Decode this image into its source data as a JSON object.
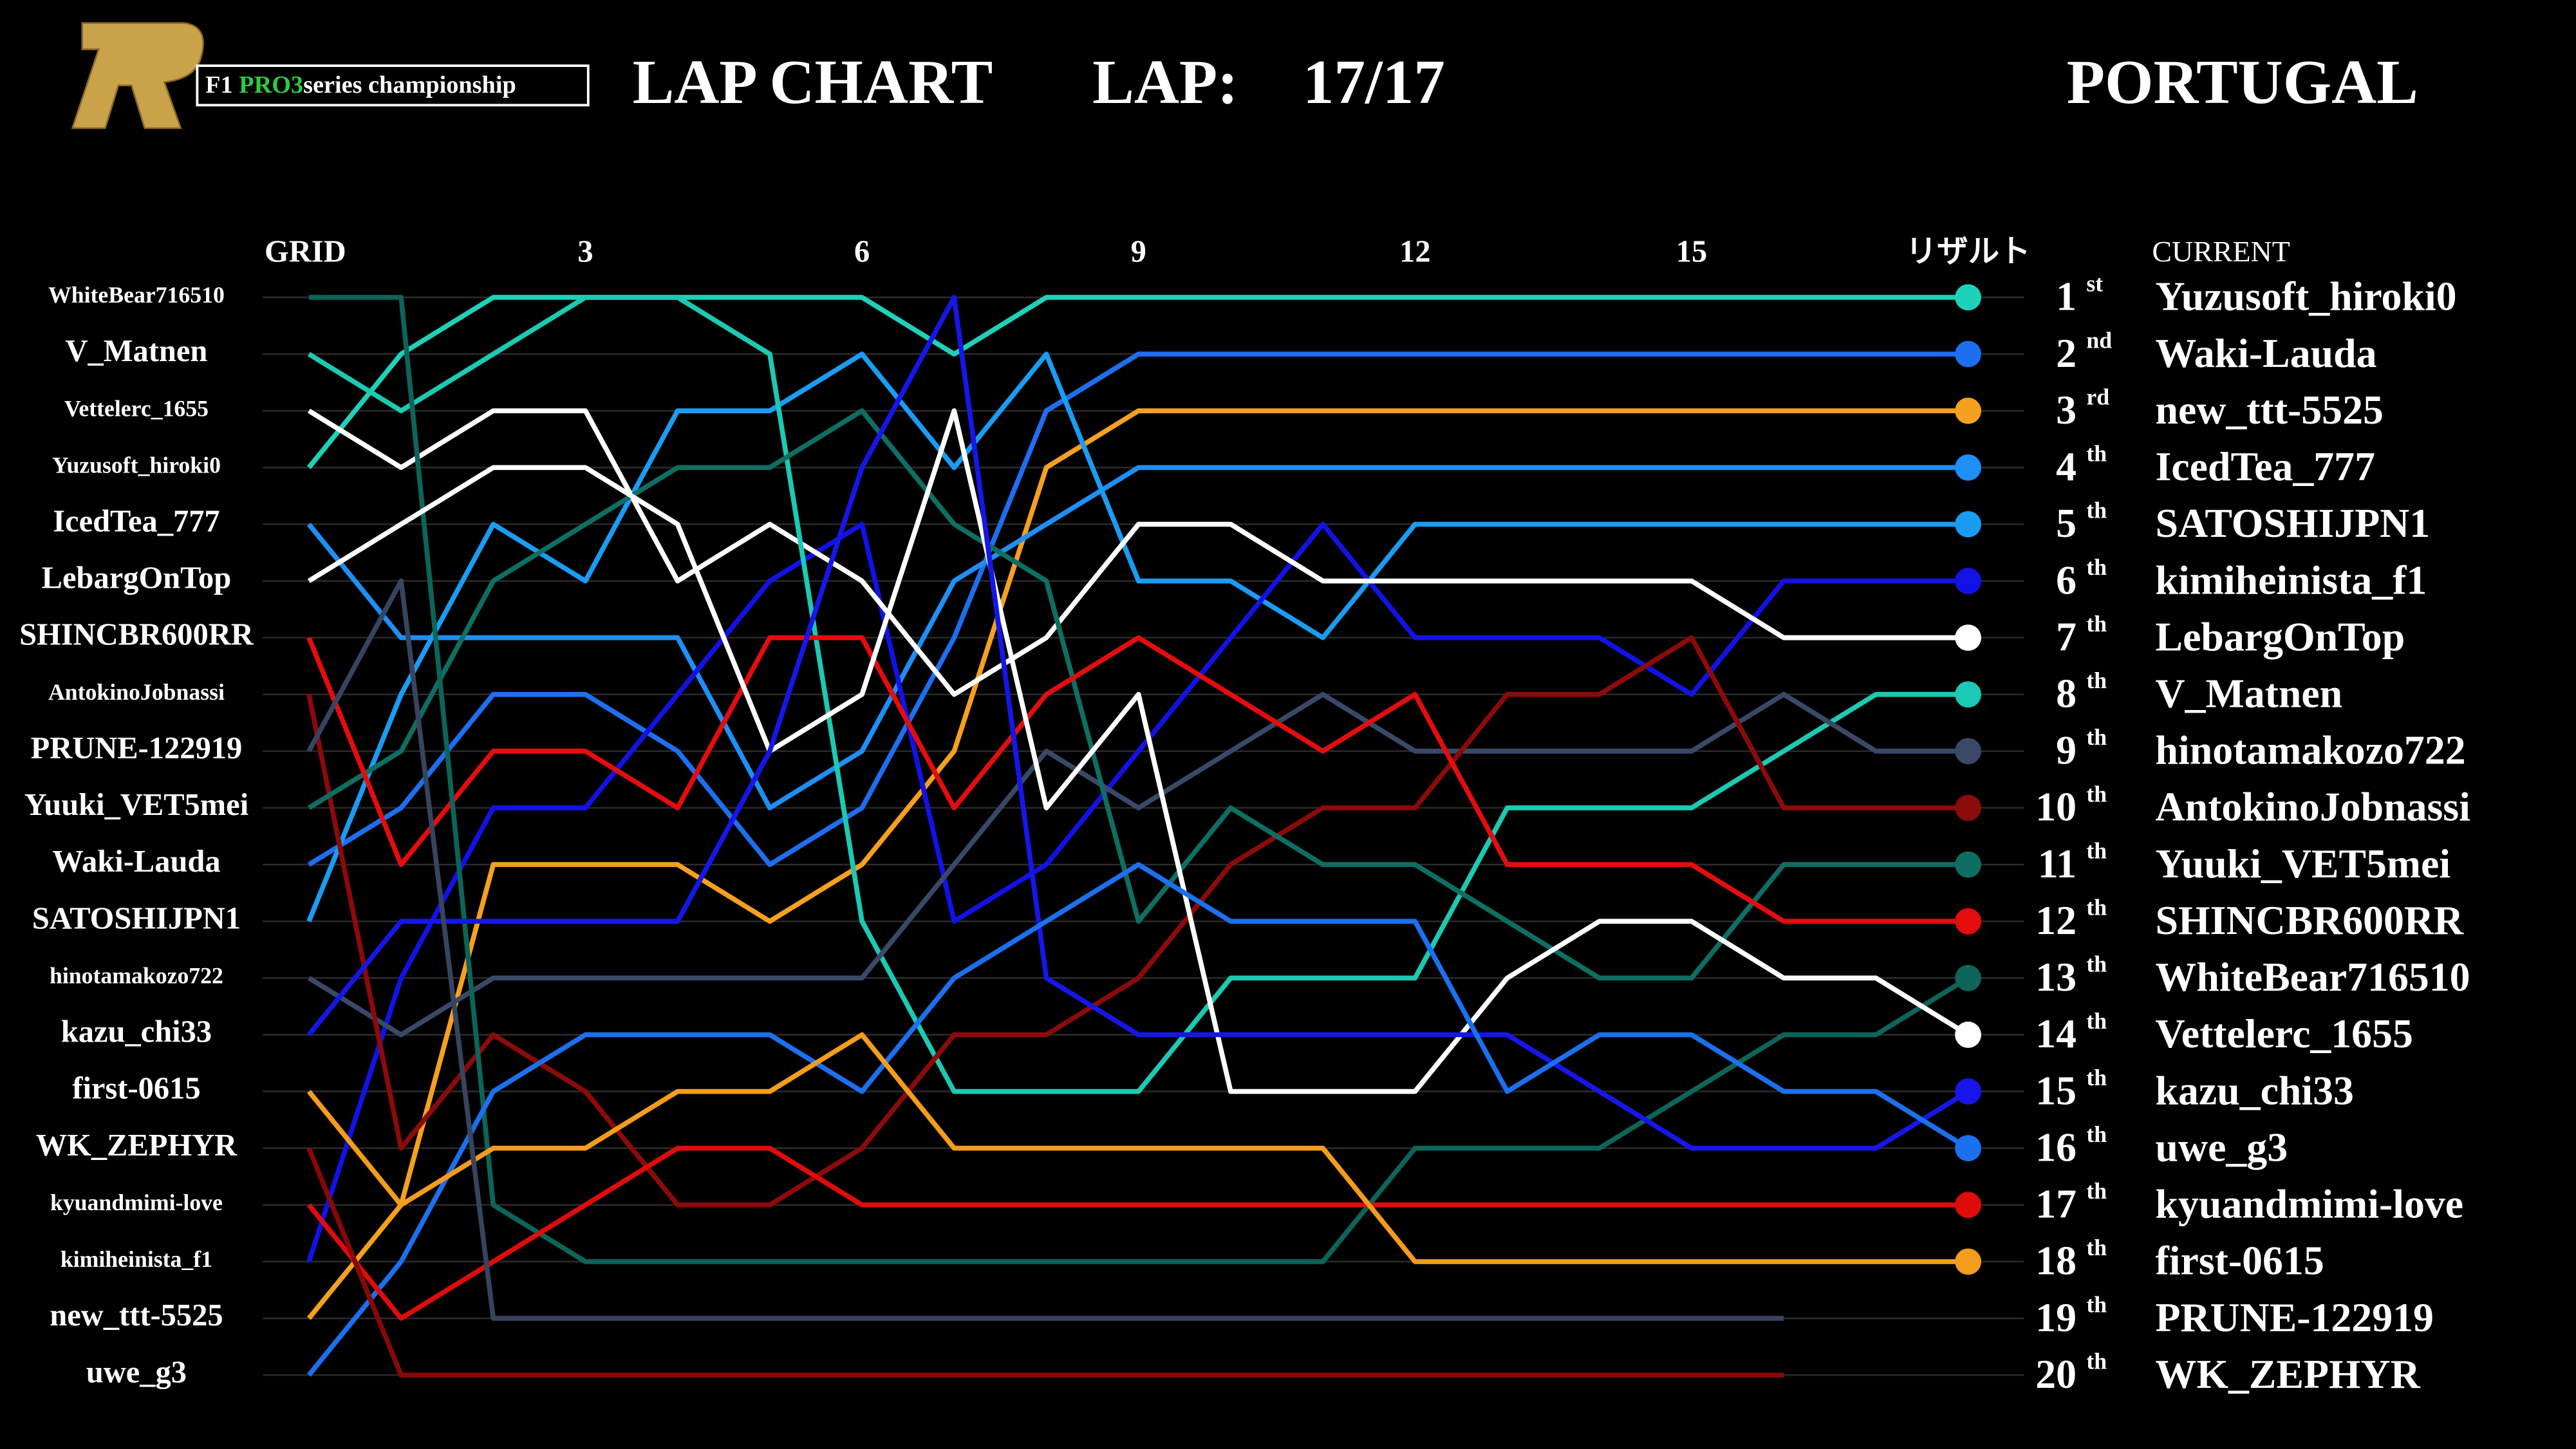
{
  "header": {
    "logo_prefix": "F1",
    "logo_highlight": "PRO3",
    "logo_suffix": "series championship",
    "title": "LAP CHART",
    "lap_label": "LAP:",
    "lap_value": "17/17",
    "location": "PORTUGAL"
  },
  "chart_data": {
    "type": "line",
    "categories": [
      "GRID",
      null,
      null,
      "3",
      null,
      null,
      "6",
      null,
      null,
      "9",
      null,
      null,
      "12",
      null,
      null,
      "15",
      null,
      null,
      "リザルト"
    ],
    "ylim": [
      1,
      20
    ],
    "y_reversed": true,
    "yticks": [
      {
        "value": 1,
        "label": "WhiteBear716510"
      },
      {
        "value": 2,
        "label": "V_Matnen"
      },
      {
        "value": 3,
        "label": "Vettelerc_1655"
      },
      {
        "value": 4,
        "label": "Yuzusoft_hiroki0"
      },
      {
        "value": 5,
        "label": "IcedTea_777"
      },
      {
        "value": 6,
        "label": "LebargOnTop"
      },
      {
        "value": 7,
        "label": "SHINCBR600RR"
      },
      {
        "value": 8,
        "label": "AntokinoJobnassi"
      },
      {
        "value": 9,
        "label": "PRUNE-122919"
      },
      {
        "value": 10,
        "label": "Yuuki_VET5mei"
      },
      {
        "value": 11,
        "label": "Waki-Lauda"
      },
      {
        "value": 12,
        "label": "SATOSHIJPN1"
      },
      {
        "value": 13,
        "label": "hinotamakozo722"
      },
      {
        "value": 14,
        "label": "kazu_chi33"
      },
      {
        "value": 15,
        "label": "first-0615"
      },
      {
        "value": 16,
        "label": "WK_ZEPHYR"
      },
      {
        "value": 17,
        "label": "kyuandmimi-love"
      },
      {
        "value": 18,
        "label": "kimiheinista_f1"
      },
      {
        "value": 19,
        "label": "new_ttt-5525"
      },
      {
        "value": 20,
        "label": "uwe_g3"
      }
    ],
    "grid": true,
    "results_title": "CURRENT",
    "ranks": [
      1,
      2,
      3,
      4,
      5,
      6,
      7,
      8,
      9,
      10,
      11,
      12,
      13,
      14,
      15,
      16,
      17,
      18,
      19,
      20
    ],
    "rank_suffixes": [
      "st",
      "nd",
      "rd",
      "th",
      "th",
      "th",
      "th",
      "th",
      "th",
      "th",
      "th",
      "th",
      "th",
      "th",
      "th",
      "th",
      "th",
      "th",
      "th",
      "th"
    ],
    "series": [
      {
        "name": "Yuzusoft_hiroki0",
        "color": "#1fd1b8",
        "values": [
          4,
          2,
          1,
          1,
          1,
          1,
          1,
          2,
          1,
          1,
          1,
          1,
          1,
          1,
          1,
          1,
          1,
          1,
          1
        ]
      },
      {
        "name": "Waki-Lauda",
        "color": "#1d6ff0",
        "values": [
          11,
          10,
          8,
          8,
          9,
          11,
          10,
          7,
          3,
          2,
          2,
          2,
          2,
          2,
          2,
          2,
          2,
          2,
          2
        ]
      },
      {
        "name": "new_ttt-5525",
        "color": "#f5a01e",
        "values": [
          19,
          17,
          11,
          11,
          11,
          12,
          11,
          9,
          4,
          3,
          3,
          3,
          3,
          3,
          3,
          3,
          3,
          3,
          3
        ]
      },
      {
        "name": "IcedTea_777",
        "color": "#1e8ff5",
        "values": [
          5,
          7,
          7,
          7,
          7,
          10,
          9,
          6,
          5,
          4,
          4,
          4,
          4,
          4,
          4,
          4,
          4,
          4,
          4
        ]
      },
      {
        "name": "SATOSHIJPN1",
        "color": "#1a9cf2",
        "values": [
          12,
          8,
          5,
          6,
          3,
          3,
          2,
          4,
          2,
          6,
          6,
          7,
          5,
          5,
          5,
          5,
          5,
          5,
          5
        ]
      },
      {
        "name": "kimiheinista_f1",
        "color": "#1212e6",
        "values": [
          18,
          13,
          10,
          10,
          8,
          6,
          5,
          12,
          11,
          9,
          7,
          5,
          7,
          7,
          7,
          8,
          6,
          6,
          6
        ]
      },
      {
        "name": "LebargOnTop",
        "color": "#ffffff",
        "values": [
          3,
          4,
          3,
          3,
          6,
          5,
          6,
          8,
          7,
          5,
          5,
          6,
          6,
          6,
          6,
          6,
          7,
          7,
          7
        ]
      },
      {
        "name": "V_Matnen",
        "color": "#1cc9b2",
        "values": [
          2,
          3,
          2,
          1,
          1,
          2,
          12,
          15,
          15,
          15,
          13,
          13,
          13,
          10,
          10,
          10,
          9,
          8,
          8
        ]
      },
      {
        "name": "hinotamakozo722",
        "color": "#3a4868",
        "values": [
          13,
          14,
          13,
          13,
          13,
          13,
          13,
          11,
          9,
          10,
          9,
          8,
          9,
          9,
          9,
          9,
          8,
          9,
          9
        ]
      },
      {
        "name": "AntokinoJobnassi",
        "color": "#8b0a0a",
        "values": [
          8,
          16,
          14,
          15,
          17,
          17,
          16,
          14,
          14,
          13,
          11,
          10,
          10,
          8,
          8,
          7,
          10,
          10,
          10
        ]
      },
      {
        "name": "Yuuki_VET5mei",
        "color": "#0f6e62",
        "values": [
          10,
          9,
          6,
          5,
          4,
          4,
          3,
          5,
          6,
          12,
          10,
          11,
          11,
          12,
          13,
          13,
          11,
          11,
          11
        ]
      },
      {
        "name": "SHINCBR600RR",
        "color": "#e30d0d",
        "values": [
          7,
          11,
          9,
          9,
          10,
          7,
          7,
          10,
          8,
          7,
          8,
          9,
          8,
          11,
          11,
          11,
          12,
          12,
          12
        ]
      },
      {
        "name": "WhiteBear716510",
        "color": "#0d6458",
        "values": [
          1,
          1,
          17,
          18,
          18,
          18,
          18,
          18,
          18,
          18,
          18,
          18,
          16,
          16,
          16,
          15,
          14,
          14,
          13
        ]
      },
      {
        "name": "Vettelerc_1655",
        "color": "#fefefe",
        "values": [
          6,
          5,
          4,
          4,
          5,
          9,
          8,
          3,
          10,
          8,
          15,
          15,
          15,
          13,
          12,
          12,
          13,
          13,
          14
        ]
      },
      {
        "name": "kazu_chi33",
        "color": "#1616e8",
        "values": [
          14,
          12,
          12,
          12,
          12,
          9,
          4,
          1,
          13,
          14,
          14,
          14,
          14,
          14,
          15,
          16,
          16,
          16,
          15
        ]
      },
      {
        "name": "uwe_g3",
        "color": "#1b70ee",
        "values": [
          20,
          18,
          15,
          14,
          14,
          14,
          15,
          13,
          12,
          11,
          12,
          12,
          12,
          15,
          14,
          14,
          15,
          15,
          16
        ]
      },
      {
        "name": "kyuandmimi-love",
        "color": "#e00b0b",
        "values": [
          17,
          19,
          18,
          17,
          16,
          16,
          17,
          17,
          17,
          17,
          17,
          17,
          17,
          17,
          17,
          17,
          17,
          17,
          17
        ]
      },
      {
        "name": "first-0615",
        "color": "#f49c1c",
        "values": [
          15,
          17,
          16,
          16,
          15,
          15,
          14,
          16,
          16,
          16,
          16,
          16,
          18,
          18,
          18,
          18,
          18,
          18,
          18
        ]
      },
      {
        "name": "PRUNE-122919",
        "color": "#36445f",
        "values": [
          9,
          6,
          19,
          19,
          19,
          19,
          19,
          19,
          19,
          19,
          19,
          19,
          19,
          19,
          19,
          19,
          19,
          null,
          null
        ]
      },
      {
        "name": "WK_ZEPHYR",
        "color": "#870808",
        "values": [
          16,
          20,
          20,
          20,
          20,
          20,
          20,
          20,
          20,
          20,
          20,
          20,
          20,
          20,
          20,
          20,
          20,
          null,
          null
        ]
      }
    ]
  }
}
